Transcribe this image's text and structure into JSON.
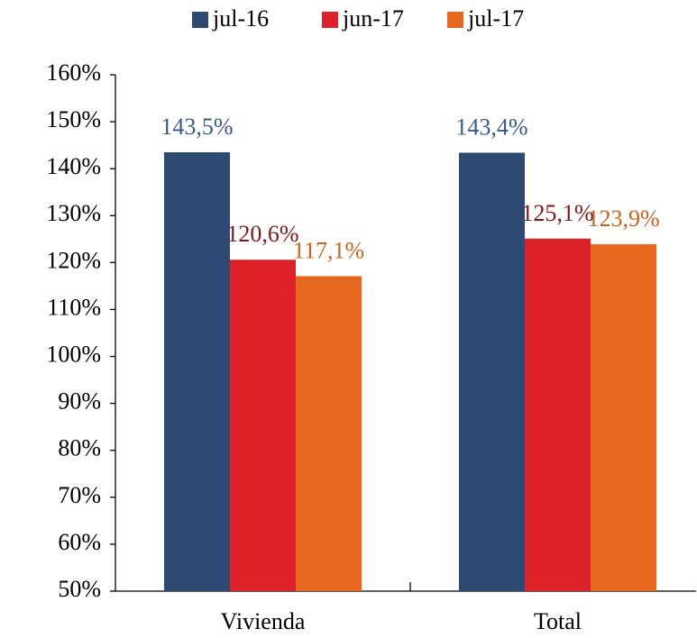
{
  "chart_data": {
    "type": "bar",
    "categories": [
      "Vivienda",
      "Total"
    ],
    "series": [
      {
        "name": "jul-16",
        "color": "#2e4a73",
        "label_color": "#3a5a8c",
        "values": [
          143.5,
          143.4
        ],
        "value_labels": [
          "143,5%",
          "143,4%"
        ]
      },
      {
        "name": "jun-17",
        "color": "#dc2228",
        "label_color": "#7b1a1e",
        "values": [
          120.6,
          125.1
        ],
        "value_labels": [
          "120,6%",
          "125,1%"
        ]
      },
      {
        "name": "jul-17",
        "color": "#e8671e",
        "label_color": "#c8641e",
        "values": [
          117.1,
          123.9
        ],
        "value_labels": [
          "117,1%",
          "123,9%"
        ]
      }
    ],
    "ylim": [
      50,
      160
    ],
    "yticks": [
      {
        "value": 50,
        "label": "50%"
      },
      {
        "value": 60,
        "label": "60%"
      },
      {
        "value": 70,
        "label": "70%"
      },
      {
        "value": 80,
        "label": "80%"
      },
      {
        "value": 90,
        "label": "90%"
      },
      {
        "value": 100,
        "label": "100%"
      },
      {
        "value": 110,
        "label": "110%"
      },
      {
        "value": 120,
        "label": "120%"
      },
      {
        "value": 130,
        "label": "130%"
      },
      {
        "value": 140,
        "label": "140%"
      },
      {
        "value": 150,
        "label": "150%"
      },
      {
        "value": 160,
        "label": "160%"
      }
    ],
    "legend": "top"
  }
}
